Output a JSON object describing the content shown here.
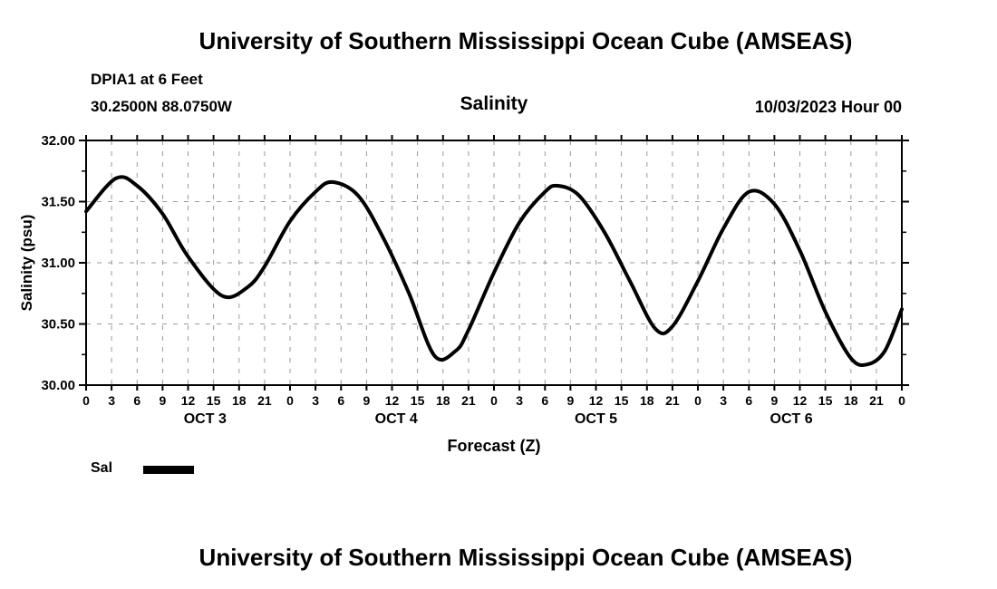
{
  "page": {
    "top_title": "University of Southern Mississippi Ocean Cube (AMSEAS)",
    "bottom_title": "University of Southern Mississippi Ocean Cube (AMSEAS)"
  },
  "header": {
    "station": "DPIA1 at 6 Feet",
    "coordinates": "30.2500N  88.0750W",
    "datetime": "10/03/2023 Hour 00"
  },
  "chart_data": {
    "type": "line",
    "title": "Salinity",
    "xlabel": "Forecast (Z)",
    "ylabel": "Salinity (psu)",
    "xlim": [
      0,
      96
    ],
    "ylim": [
      30.0,
      32.0
    ],
    "grid": true,
    "legend_position": "bottom-left",
    "yticks": [
      30.0,
      30.5,
      31.0,
      31.5,
      32.0
    ],
    "ytick_labels": [
      "30.00",
      "30.50",
      "31.00",
      "31.50",
      "32.00"
    ],
    "ytick_minor": [
      30.25,
      30.75,
      31.25,
      31.75
    ],
    "xtick_hours": [
      0,
      3,
      6,
      9,
      12,
      15,
      18,
      21,
      24,
      27,
      30,
      33,
      36,
      39,
      42,
      45,
      48,
      51,
      54,
      57,
      60,
      63,
      66,
      69,
      72,
      75,
      78,
      81,
      84,
      87,
      90,
      93,
      96
    ],
    "xtick_labels": [
      "0",
      "3",
      "6",
      "9",
      "12",
      "15",
      "18",
      "21",
      "0",
      "3",
      "6",
      "9",
      "12",
      "15",
      "18",
      "21",
      "0",
      "3",
      "6",
      "9",
      "12",
      "15",
      "18",
      "21",
      "0",
      "3",
      "6",
      "9",
      "12",
      "15",
      "18",
      "21",
      "0"
    ],
    "day_labels": [
      {
        "label": "OCT 3",
        "hour": 14
      },
      {
        "label": "OCT 4",
        "hour": 36.5
      },
      {
        "label": "OCT 5",
        "hour": 60
      },
      {
        "label": "OCT 6",
        "hour": 83
      }
    ],
    "series": [
      {
        "name": "Sal",
        "color": "#000000",
        "x": [
          0,
          3.5,
          6,
          9,
          12,
          16,
          19,
          21,
          24,
          27,
          29,
          32,
          35,
          38,
          41,
          43.5,
          45,
          48,
          51,
          54,
          55.5,
          58,
          61,
          64,
          67,
          69,
          72,
          75,
          78,
          81,
          84,
          87,
          90,
          92,
          94,
          96
        ],
        "y": [
          31.42,
          31.69,
          31.63,
          31.4,
          31.05,
          30.73,
          30.8,
          30.97,
          31.34,
          31.58,
          31.66,
          31.55,
          31.2,
          30.75,
          30.24,
          30.28,
          30.45,
          30.92,
          31.33,
          31.58,
          31.63,
          31.55,
          31.25,
          30.85,
          30.46,
          30.48,
          30.85,
          31.28,
          31.58,
          31.48,
          31.1,
          30.6,
          30.22,
          30.17,
          30.28,
          30.62
        ]
      }
    ]
  }
}
